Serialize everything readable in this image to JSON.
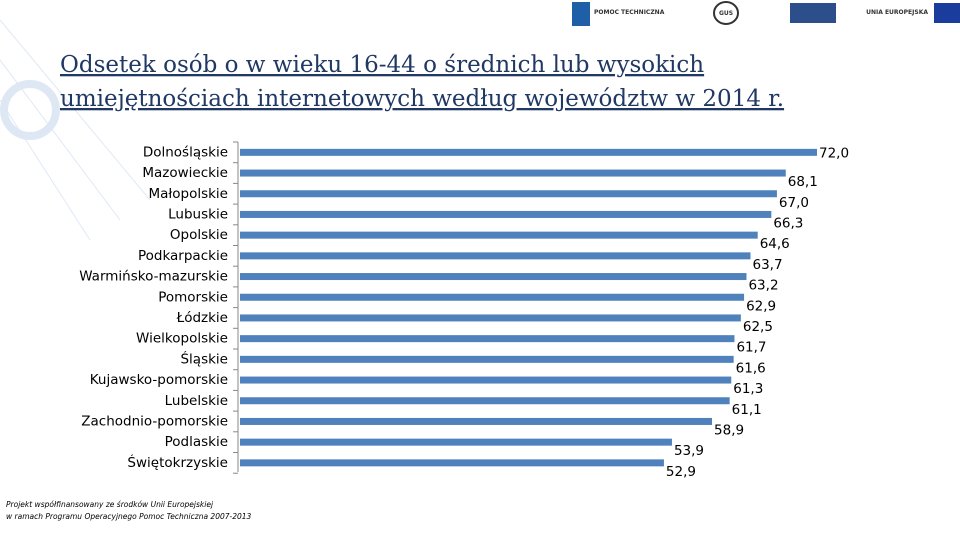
{
  "header": {
    "logos": [
      "POMOC TECHNICZNA",
      "GUS",
      "UNIA EUROPEJSKA"
    ]
  },
  "chart_data": {
    "type": "bar",
    "orientation": "horizontal",
    "title": "Odsetek osób o w wieku 16-44 o średnich lub wysokich umiejętnościach internetowych według województw w 2014 r.",
    "categories": [
      "Dolnośląskie",
      "Mazowieckie",
      "Małopolskie",
      "Lubuskie",
      "Opolskie",
      "Podkarpackie",
      "Warmińsko-mazurskie",
      "Pomorskie",
      "Łódzkie",
      "Wielkopolskie",
      "Śląskie",
      "Kujawsko-pomorskie",
      "Lubelskie",
      "Zachodnio-pomorskie",
      "Podlaskie",
      "Świętokrzyskie"
    ],
    "values": [
      72.0,
      68.1,
      67.0,
      66.3,
      64.6,
      63.7,
      63.2,
      62.9,
      62.5,
      61.7,
      61.6,
      61.3,
      61.1,
      58.9,
      53.9,
      52.9
    ],
    "value_labels": [
      "72,0",
      "68,1",
      "67,0",
      "66,3",
      "64,6",
      "63,7",
      "63,2",
      "62,9",
      "62,5",
      "61,7",
      "61,6",
      "61,3",
      "61,1",
      "58,9",
      "53,9",
      "52,9"
    ],
    "color": "#4f81bd"
  },
  "footer": {
    "lines": [
      "Projekt współfinansowany ze środków Unii Europejskiej",
      "w ramach Programu Operacyjnego Pomoc Techniczna 2007-2013"
    ]
  }
}
